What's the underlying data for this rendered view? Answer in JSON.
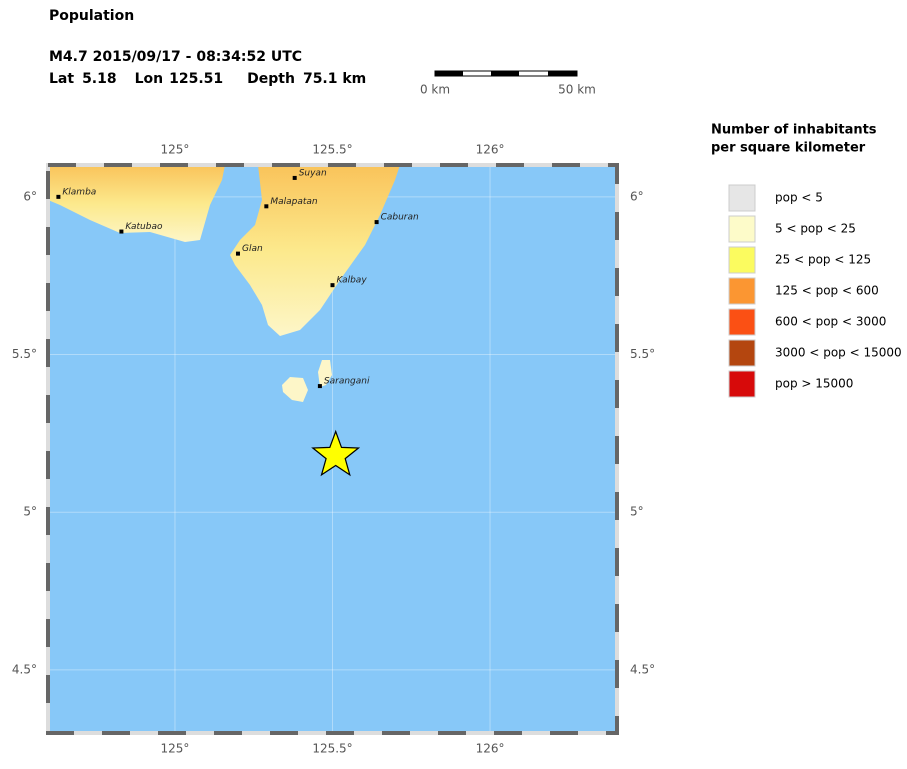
{
  "header": {
    "title": "Population",
    "event": "M4.7  2015/09/17 - 08:34:52 UTC",
    "lat_label": "Lat",
    "lon_label": "Lon",
    "depth_label": "Depth",
    "depth": "75.1 km"
  },
  "scale_bar": {
    "start_label": "0 km",
    "end_label": "50 km"
  },
  "map": {
    "lonlim": [
      124.597,
      126.403
    ],
    "latlim": [
      4.3,
      6.101
    ],
    "lon_ticks": [
      {
        "value": 125,
        "label": "125°"
      },
      {
        "value": 125.5,
        "label": "125.5°"
      },
      {
        "value": 126,
        "label": "126°"
      }
    ],
    "lat_ticks": [
      {
        "value": 6,
        "label": "6°"
      },
      {
        "value": 5.5,
        "label": "5.5°"
      },
      {
        "value": 5,
        "label": "5°"
      },
      {
        "value": 4.5,
        "label": "4.5°"
      }
    ],
    "epicenter": {
      "lat": 5.18,
      "lon": 125.51,
      "color": "#ffff00"
    },
    "places": [
      {
        "name": "Klamba",
        "lon": 124.63,
        "lat": 6.0
      },
      {
        "name": "Katubao",
        "lon": 124.83,
        "lat": 5.89
      },
      {
        "name": "Suyan",
        "lon": 125.38,
        "lat": 6.06
      },
      {
        "name": "Malapatan",
        "lon": 125.29,
        "lat": 5.97
      },
      {
        "name": "Glan",
        "lon": 125.2,
        "lat": 5.82
      },
      {
        "name": "Caburan",
        "lon": 125.64,
        "lat": 5.92
      },
      {
        "name": "Kalbay",
        "lon": 125.5,
        "lat": 5.72
      },
      {
        "name": "Sarangani",
        "lon": 125.46,
        "lat": 5.4
      }
    ]
  },
  "legend": {
    "title_line1": "Number of inhabitants",
    "title_line2": "per square kilometer",
    "items": [
      {
        "label": "pop < 5",
        "color": "#e6e6e6"
      },
      {
        "label": "5 < pop < 25",
        "color": "#fdfbc9"
      },
      {
        "label": "25 < pop < 125",
        "color": "#fbfb5f"
      },
      {
        "label": "125 < pop < 600",
        "color": "#fb9632"
      },
      {
        "label": "600 < pop < 3000",
        "color": "#fb5014"
      },
      {
        "label": "3000 < pop < 15000",
        "color": "#b4460f"
      },
      {
        "label": "pop > 15000",
        "color": "#d70a0a"
      }
    ]
  }
}
